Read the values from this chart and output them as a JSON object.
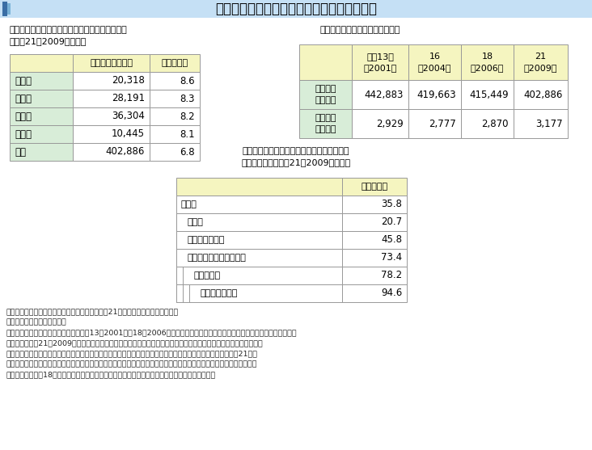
{
  "title": "表２－７　外食産業の事業所数、従業者数等",
  "table1_subtitle": "（全産業に占める外食産業の割合が高い都道府県\n（平成21（2009）年））",
  "table1_headers": [
    "",
    "事業所数（か所）",
    "割合（％）"
  ],
  "table1_rows": [
    [
      "兵庫県",
      "20,318",
      "8.6"
    ],
    [
      "愛知県",
      "28,191",
      "8.3"
    ],
    [
      "大阪府",
      "36,304",
      "8.2"
    ],
    [
      "京都府",
      "10,445",
      "8.1"
    ],
    [
      "全国",
      "402,886",
      "6.8"
    ]
  ],
  "table2_subtitle": "（事業所数及び従業者数の推移）",
  "table2_col_headers": [
    "",
    "平成13年\n（2001）",
    "16\n（2004）",
    "18\n（2006）",
    "21\n（2009）"
  ],
  "table2_row_headers": [
    "事業所数\n（か所）",
    "従業者数\n（千人）"
  ],
  "table2_data": [
    [
      "442,883",
      "419,663",
      "415,449",
      "402,886"
    ],
    [
      "2,929",
      "2,777",
      "2,870",
      "3,177"
    ]
  ],
  "table3_subtitle": "（常用雇用者に占める正社員・正職員以外の\n雇用者の割合（平成21（2009）年））",
  "table3_headers": [
    "",
    "割合（％）"
  ],
  "table3_rows": [
    [
      "全産業",
      "35.8",
      0
    ],
    [
      "製造業",
      "20.7",
      8
    ],
    [
      "卸売業、小売業",
      "45.8",
      8
    ],
    [
      "宿泊業、飲食サービス業",
      "73.4",
      8
    ],
    [
      "一般飲食店",
      "78.2",
      16
    ],
    [
      "ハンバーガー店",
      "94.6",
      24
    ]
  ],
  "footnote_lines": [
    "資料：総務省「事業所・企業統計調査」、「平成21年経済センサス－基礎調査」",
    "　注：１）対象は民営事業所",
    "　　　２）「外食産業」について、平成13（2001）～18（2006）年は、「事業所・企業統計調査」の「一般飲食店」の数値。",
    "　　　　　平成21（2009）年は、総務省「経済センサス－基礎調査」の産業中分類「飲食店」のうち、食堂・レスト",
    "　　　　　ラン、専門料理店、そば・うどん店、すし店、喫茶店、その他の飲食店の数値を合算。なお、「平成21年経",
    "　　　　　済センサス－基礎調査」は「事業所・企業統計調査」と調査の対象は同様であるが、調査手法が異なるため、",
    "　　　　　「平成18年事業所・企業統計調査」との差数がすべて増加・減少を示すものではない。"
  ],
  "color_title_bg": "#C5E0F5",
  "color_title_bar_dark": "#3A6EA5",
  "color_title_bar_mid": "#7AB3D8",
  "color_header_yellow": "#F5F5C0",
  "color_green_cell": "#D8EDD8",
  "color_white": "#FFFFFF",
  "color_border": "#999999",
  "color_border_dark": "#666666",
  "color_bg": "#FFFFFF"
}
